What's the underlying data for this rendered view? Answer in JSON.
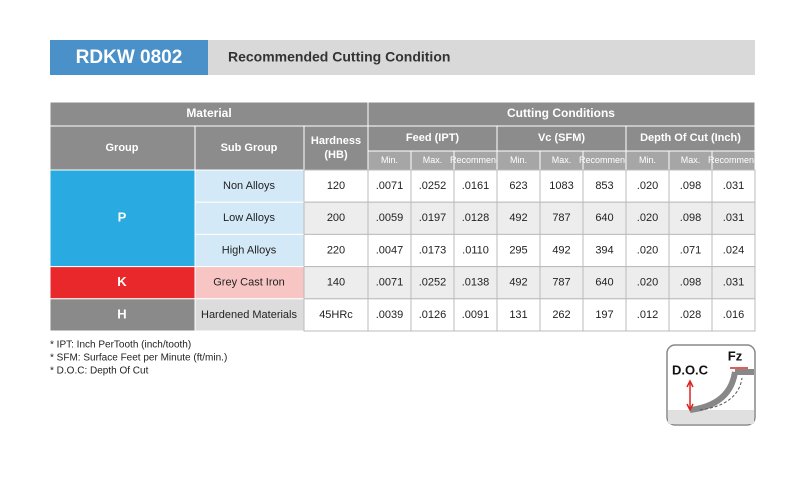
{
  "header": {
    "code": "RDKW 0802",
    "title": "Recommended Cutting Condition"
  },
  "table": {
    "group_headers": [
      "Material",
      "Cutting Conditions"
    ],
    "material_columns": {
      "group": "Group",
      "sub_group": "Sub Group",
      "hardness": [
        "Hardness",
        "(HB)"
      ]
    },
    "condition_groups": [
      "Feed (IPT)",
      "Vc (SFM)",
      "Depth Of Cut (Inch)"
    ],
    "sub_columns": [
      "Min.",
      "Max.",
      "Recommend"
    ],
    "groups": [
      {
        "label": "P",
        "color": "#29abe2",
        "sub_color": "#d4e9f7",
        "rows": [
          {
            "sub_group": "Non Alloys",
            "hardness": "120",
            "values": [
              ".0071",
              ".0252",
              ".0161",
              "623",
              "1083",
              "853",
              ".020",
              ".098",
              ".031"
            ]
          },
          {
            "sub_group": "Low Alloys",
            "hardness": "200",
            "values": [
              ".0059",
              ".0197",
              ".0128",
              "492",
              "787",
              "640",
              ".020",
              ".098",
              ".031"
            ]
          },
          {
            "sub_group": "High Alloys",
            "hardness": "220",
            "values": [
              ".0047",
              ".0173",
              ".0110",
              "295",
              "492",
              "394",
              ".020",
              ".071",
              ".024"
            ]
          }
        ]
      },
      {
        "label": "K",
        "color": "#e8282b",
        "sub_color": "#f7c6c4",
        "rows": [
          {
            "sub_group": "Grey Cast Iron",
            "hardness": "140",
            "values": [
              ".0071",
              ".0252",
              ".0138",
              "492",
              "787",
              "640",
              ".020",
              ".098",
              ".031"
            ]
          }
        ]
      },
      {
        "label": "H",
        "color": "#8a8a8a",
        "sub_color": "#dcdcdc",
        "rows": [
          {
            "sub_group": "Hardened Materials",
            "hardness": "45HRc",
            "values": [
              ".0039",
              ".0126",
              ".0091",
              "131",
              "262",
              "197",
              ".012",
              ".028",
              ".016"
            ]
          }
        ]
      }
    ]
  },
  "footnotes": [
    "* IPT: Inch PerTooth (inch/tooth)",
    "* SFM: Surface Feet per Minute (ft/min.)",
    "* D.O.C: Depth Of Cut"
  ],
  "diagram": {
    "doc_label": "D.O.C",
    "fz_label": "Fz"
  }
}
